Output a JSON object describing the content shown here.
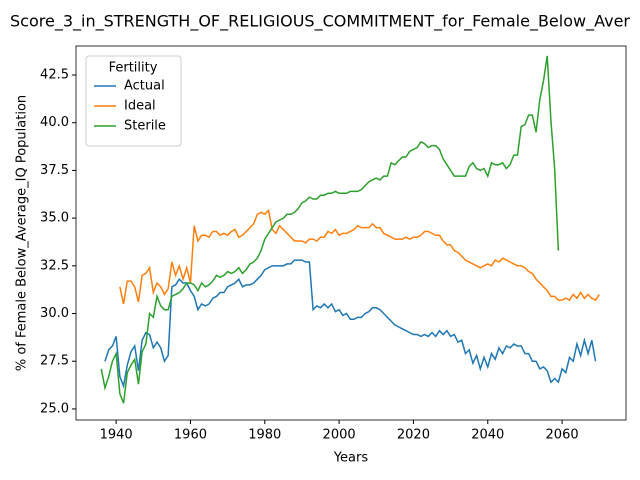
{
  "chart_data": {
    "type": "line",
    "title": "Score_3_in_STRENGTH_OF_RELIGIOUS_COMMITMENT_for_Female_Below_Aver",
    "x_label": "Years",
    "y_label": "% of Female Below_Average_IQ Population",
    "legend_title": "Fertility",
    "legend_position": "upper left",
    "grid": false,
    "xlim": [
      1929.2,
      2077.2
    ],
    "ylim": [
      24.42,
      44.02
    ],
    "xticks": [
      1940,
      1960,
      1980,
      2000,
      2020,
      2040,
      2060
    ],
    "yticks": [
      {
        "value": 25,
        "label": "25.0"
      },
      27.5,
      {
        "value": 30,
        "label": "30.0"
      },
      32.5,
      {
        "value": 35,
        "label": "35.0"
      },
      37.5,
      {
        "value": 40,
        "label": "40.0"
      },
      42.5
    ],
    "x": [
      1936,
      1937,
      1938,
      1939,
      1940,
      1941,
      1942,
      1943,
      1944,
      1945,
      1946,
      1947,
      1948,
      1949,
      1950,
      1951,
      1952,
      1953,
      1954,
      1955,
      1956,
      1957,
      1958,
      1959,
      1960,
      1961,
      1962,
      1963,
      1964,
      1965,
      1966,
      1967,
      1968,
      1969,
      1970,
      1971,
      1972,
      1973,
      1974,
      1975,
      1976,
      1977,
      1978,
      1979,
      1980,
      1981,
      1982,
      1983,
      1984,
      1985,
      1986,
      1987,
      1988,
      1989,
      1990,
      1991,
      1992,
      1993,
      1994,
      1995,
      1996,
      1997,
      1998,
      1999,
      2000,
      2001,
      2002,
      2003,
      2004,
      2005,
      2006,
      2007,
      2008,
      2009,
      2010,
      2011,
      2012,
      2013,
      2014,
      2015,
      2016,
      2017,
      2018,
      2019,
      2020,
      2021,
      2022,
      2023,
      2024,
      2025,
      2026,
      2027,
      2028,
      2029,
      2030,
      2031,
      2032,
      2033,
      2034,
      2035,
      2036,
      2037,
      2038,
      2039,
      2040,
      2041,
      2042,
      2043,
      2044,
      2045,
      2046,
      2047,
      2048,
      2049,
      2050,
      2051,
      2052,
      2053,
      2054,
      2055,
      2056,
      2057,
      2058,
      2059,
      2060,
      2061,
      2062,
      2063,
      2064,
      2065,
      2066,
      2067,
      2068,
      2069,
      2070
    ],
    "series": [
      {
        "name": "Actual",
        "color": "#1f77b4",
        "values": [
          null,
          27.5,
          28.1,
          28.3,
          28.8,
          26.7,
          26.2,
          27.3,
          28.0,
          28.3,
          27.0,
          28.6,
          29.0,
          28.9,
          28.2,
          28.5,
          28.2,
          27.5,
          27.8,
          31.4,
          31.5,
          31.8,
          31.6,
          31.6,
          31.2,
          30.9,
          30.2,
          30.5,
          30.4,
          30.5,
          30.8,
          30.9,
          31.1,
          31.1,
          31.4,
          31.5,
          31.6,
          31.8,
          31.4,
          31.5,
          31.5,
          31.6,
          31.8,
          32.0,
          32.3,
          32.4,
          32.5,
          32.5,
          32.5,
          32.5,
          32.6,
          32.6,
          32.8,
          32.8,
          32.8,
          32.7,
          32.7,
          30.2,
          30.4,
          30.3,
          30.5,
          30.3,
          30.5,
          30.1,
          30.2,
          29.9,
          30.0,
          29.7,
          29.7,
          29.8,
          29.8,
          30.0,
          30.1,
          30.3,
          30.3,
          30.2,
          30.0,
          29.8,
          29.6,
          29.4,
          29.3,
          29.2,
          29.1,
          29.0,
          28.9,
          28.9,
          28.8,
          28.9,
          28.8,
          29.0,
          28.8,
          29.1,
          28.9,
          29.1,
          28.8,
          28.9,
          28.5,
          28.6,
          27.9,
          28.1,
          27.4,
          27.8,
          27.1,
          27.7,
          27.2,
          27.9,
          27.6,
          28.2,
          27.9,
          28.3,
          28.2,
          28.4,
          28.3,
          28.3,
          27.9,
          27.9,
          27.5,
          27.5,
          27.1,
          27.2,
          27.0,
          26.4,
          26.6,
          26.4,
          27.1,
          26.9,
          27.7,
          27.5,
          28.4,
          27.8,
          28.6,
          27.9,
          28.6,
          27.5,
          null
        ]
      },
      {
        "name": "Ideal",
        "color": "#ff7f0e",
        "values": [
          null,
          null,
          null,
          null,
          null,
          31.4,
          30.5,
          31.7,
          31.7,
          31.4,
          30.6,
          32.0,
          32.1,
          32.4,
          31.1,
          31.6,
          31.4,
          31.0,
          31.3,
          32.7,
          32.0,
          32.5,
          31.8,
          32.4,
          31.6,
          34.6,
          33.8,
          34.1,
          34.1,
          34.0,
          34.3,
          34.3,
          34.1,
          34.2,
          34.1,
          34.3,
          34.4,
          34.0,
          34.1,
          34.3,
          34.5,
          34.7,
          35.2,
          35.3,
          35.2,
          35.4,
          34.4,
          34.2,
          34.6,
          34.4,
          34.2,
          34.0,
          33.8,
          33.8,
          33.8,
          33.7,
          33.9,
          33.9,
          33.8,
          34.0,
          34.0,
          34.3,
          34.2,
          34.4,
          34.1,
          34.2,
          34.2,
          34.3,
          34.4,
          34.6,
          34.5,
          34.5,
          34.5,
          34.7,
          34.5,
          34.5,
          34.2,
          34.1,
          34.0,
          33.9,
          33.9,
          33.9,
          34.0,
          33.9,
          34.0,
          34.0,
          34.1,
          34.3,
          34.3,
          34.2,
          34.1,
          34.1,
          33.8,
          33.6,
          33.6,
          33.3,
          33.2,
          33.0,
          32.8,
          32.7,
          32.6,
          32.5,
          32.4,
          32.5,
          32.6,
          32.5,
          32.8,
          32.7,
          32.9,
          32.8,
          32.7,
          32.6,
          32.5,
          32.5,
          32.4,
          32.2,
          32.1,
          31.8,
          31.6,
          31.4,
          31.2,
          30.9,
          30.9,
          30.7,
          30.7,
          30.8,
          30.7,
          31.0,
          30.8,
          31.1,
          30.8,
          31.0,
          30.8,
          30.7,
          31.0
        ]
      },
      {
        "name": "Sterile",
        "color": "#2ca02c",
        "values": [
          27.1,
          26.1,
          26.7,
          27.5,
          27.9,
          25.8,
          25.3,
          26.9,
          27.3,
          27.6,
          26.3,
          28.0,
          28.4,
          30.0,
          29.8,
          30.9,
          30.4,
          30.2,
          30.2,
          30.9,
          31.0,
          31.1,
          31.3,
          31.6,
          31.6,
          31.5,
          31.2,
          31.6,
          31.4,
          31.5,
          31.7,
          32.0,
          31.9,
          32.0,
          32.2,
          32.1,
          32.2,
          32.4,
          32.1,
          32.3,
          32.6,
          32.7,
          32.9,
          33.3,
          33.9,
          34.2,
          34.5,
          34.8,
          34.9,
          35.0,
          35.2,
          35.2,
          35.3,
          35.5,
          35.8,
          35.9,
          36.1,
          36.0,
          36.0,
          36.2,
          36.2,
          36.3,
          36.3,
          36.4,
          36.3,
          36.3,
          36.3,
          36.4,
          36.4,
          36.4,
          36.5,
          36.7,
          36.9,
          37.0,
          37.1,
          37.0,
          37.2,
          37.2,
          37.9,
          37.8,
          38.0,
          38.2,
          38.2,
          38.5,
          38.6,
          38.7,
          39.0,
          38.9,
          38.7,
          38.8,
          38.8,
          38.6,
          38.1,
          37.8,
          37.5,
          37.2,
          37.2,
          37.2,
          37.2,
          37.7,
          37.9,
          37.6,
          37.5,
          37.6,
          37.2,
          37.9,
          37.8,
          37.8,
          37.9,
          37.6,
          37.8,
          38.3,
          38.3,
          39.8,
          39.9,
          40.4,
          40.4,
          39.5,
          41.2,
          42.2,
          43.5,
          40.1,
          37.6,
          33.3,
          null,
          null,
          null,
          null,
          null,
          null,
          null,
          null,
          null,
          null,
          null
        ]
      }
    ]
  }
}
